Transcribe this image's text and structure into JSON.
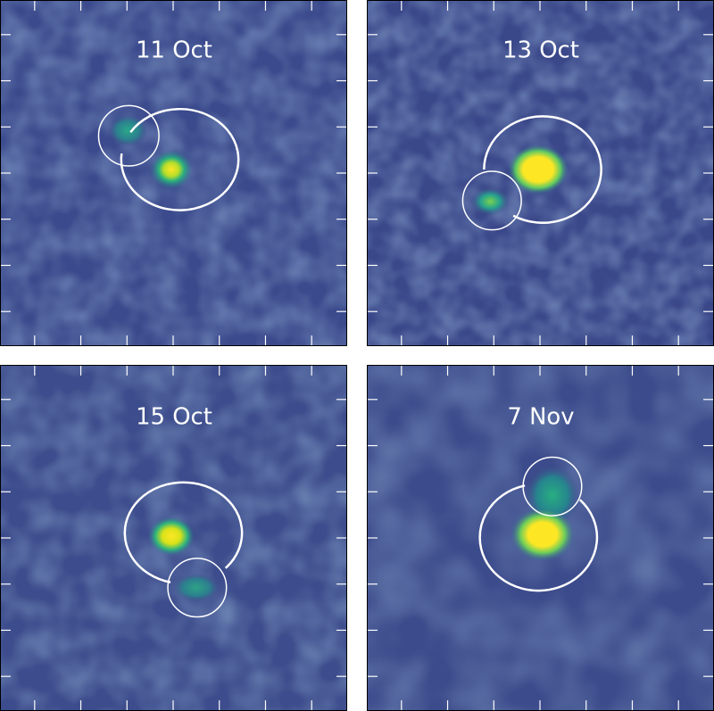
{
  "panels": [
    {
      "label": "11 Oct"
    },
    {
      "label": "13 Oct"
    },
    {
      "label": "15 Oct"
    },
    {
      "label": "7 Nov"
    }
  ],
  "colors": {
    "background": "#ffffff",
    "colormap": [
      "#440154",
      "#3b528b",
      "#21918c",
      "#5ec962",
      "#fde725"
    ],
    "circle_stroke": "#ffffff",
    "frame": "#000000"
  }
}
